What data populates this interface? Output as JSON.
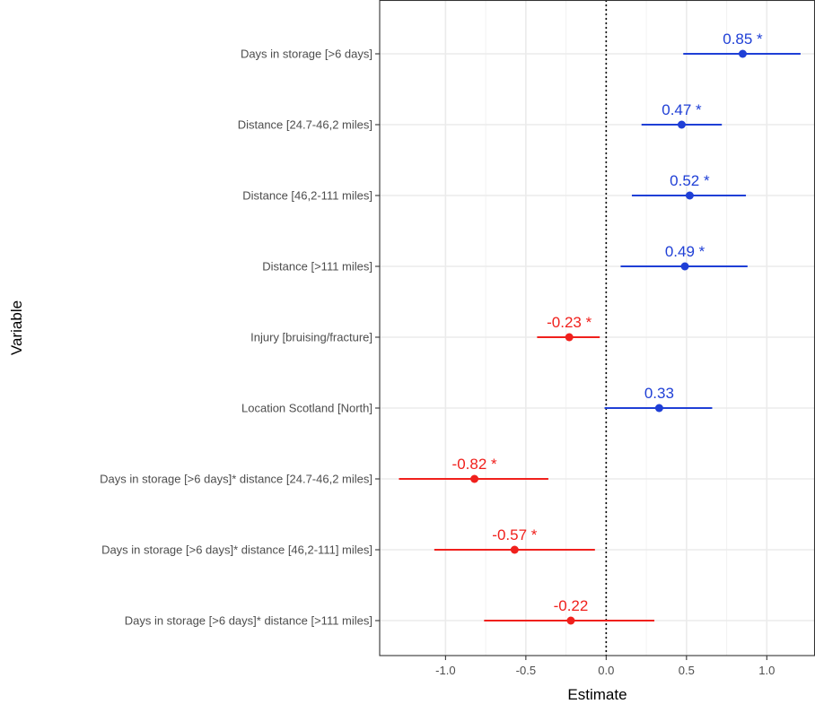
{
  "chart_data": {
    "type": "scatter",
    "subtype": "coefficient-plot",
    "xlabel": "Estimate",
    "ylabel": "Variable",
    "xlim": [
      -1.41,
      1.3
    ],
    "x_ticks": [
      -1.0,
      -0.5,
      0.0,
      0.5,
      1.0
    ],
    "x_tick_labels": [
      "-1.0",
      "-0.5",
      "0.0",
      "0.5",
      "1.0"
    ],
    "reference_line": 0.0,
    "grid": true,
    "legend": "none",
    "colors": {
      "positive": "#1f3fd6",
      "negative": "#f0201c"
    },
    "rows": [
      {
        "label": "Days in storage [>6 days]",
        "estimate": 0.85,
        "ci_low": 0.48,
        "ci_high": 1.21,
        "text": "0.85 *",
        "direction": "positive"
      },
      {
        "label": "Distance [24.7-46,2 miles]",
        "estimate": 0.47,
        "ci_low": 0.22,
        "ci_high": 0.72,
        "text": "0.47 *",
        "direction": "positive"
      },
      {
        "label": "Distance [46,2-111 miles]",
        "estimate": 0.52,
        "ci_low": 0.16,
        "ci_high": 0.87,
        "text": "0.52 *",
        "direction": "positive"
      },
      {
        "label": "Distance [>111 miles]",
        "estimate": 0.49,
        "ci_low": 0.09,
        "ci_high": 0.88,
        "text": "0.49 *",
        "direction": "positive"
      },
      {
        "label": "Injury [bruising/fracture]",
        "estimate": -0.23,
        "ci_low": -0.43,
        "ci_high": -0.04,
        "text": "-0.23 *",
        "direction": "negative"
      },
      {
        "label": "Location Scotland [North]",
        "estimate": 0.33,
        "ci_low": -0.01,
        "ci_high": 0.66,
        "text": "0.33",
        "direction": "positive"
      },
      {
        "label": "Days in storage [>6 days]* distance [24.7-46,2 miles]",
        "estimate": -0.82,
        "ci_low": -1.29,
        "ci_high": -0.36,
        "text": "-0.82 *",
        "direction": "negative"
      },
      {
        "label": "Days in storage [>6 days]* distance [46,2-111] miles]",
        "estimate": -0.57,
        "ci_low": -1.07,
        "ci_high": -0.07,
        "text": "-0.57 *",
        "direction": "negative"
      },
      {
        "label": "Days in storage [>6 days]* distance [>111 miles]",
        "estimate": -0.22,
        "ci_low": -0.76,
        "ci_high": 0.3,
        "text": "-0.22",
        "direction": "negative"
      }
    ]
  }
}
